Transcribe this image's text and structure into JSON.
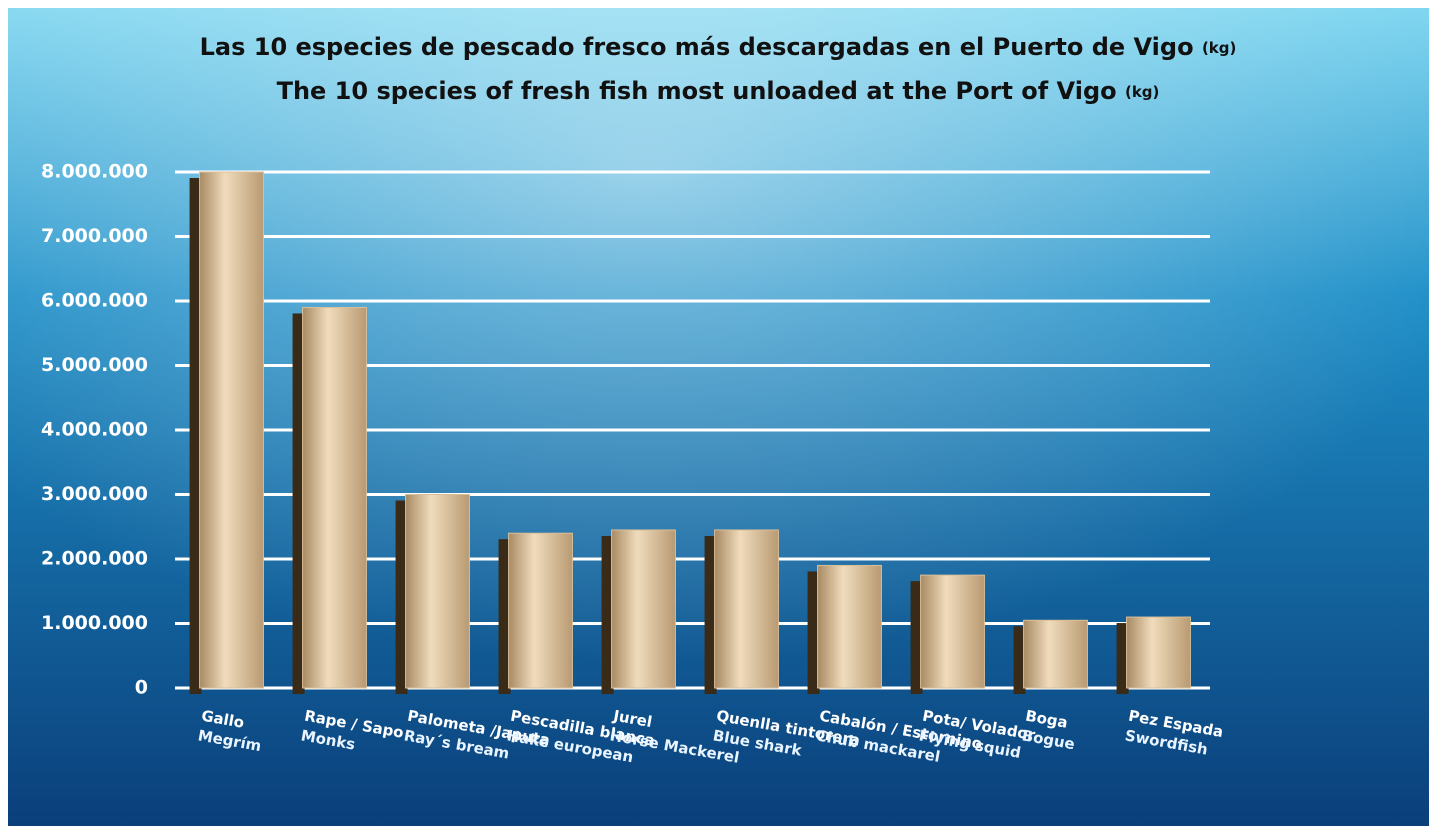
{
  "chart_data": {
    "type": "bar",
    "title": "Las 10 especies de pescado fresco más descargadas en el Puerto de Vigo",
    "title_unit": "(kg)",
    "subtitle": "The 10 species of fresh fish most unloaded at the Port of Vigo",
    "subtitle_unit": "(kg)",
    "categories": [
      "Gallo",
      "Rape / Sapo",
      "Palometa /Japuta",
      "Pescadilla blanca",
      "Jurel",
      "Quenlla tintorera",
      "Cabalón / Estornino",
      "Pota/ Volador",
      "Boga",
      "Pez Espada"
    ],
    "categories_en": [
      "Megrím",
      "Monks",
      "Ray´s bream",
      "Hake european",
      "Horse Mackerel",
      "Blue shark",
      "Chub mackarel",
      "Flying squid",
      "Bogue",
      "Swordfish"
    ],
    "values": [
      8000000,
      5900000,
      3000000,
      2400000,
      2450000,
      2450000,
      1900000,
      1750000,
      1050000,
      1100000
    ],
    "color": "#d9bf98",
    "ylim": [
      0,
      8000000
    ],
    "yticks": [
      0,
      {
        "value": 1000000,
        "label": "1.000.000"
      },
      {
        "value": 2000000,
        "label": "2.000.000"
      },
      {
        "value": 3000000,
        "label": "3.000.000"
      },
      {
        "value": 4000000,
        "label": "4.000.000"
      },
      {
        "value": 5000000,
        "label": "5.000.000"
      },
      {
        "value": 6000000,
        "label": "6.000.000"
      },
      {
        "value": 7000000,
        "label": "7.000.000"
      },
      {
        "value": 8000000,
        "label": "8.000.000"
      }
    ],
    "grid": true
  }
}
